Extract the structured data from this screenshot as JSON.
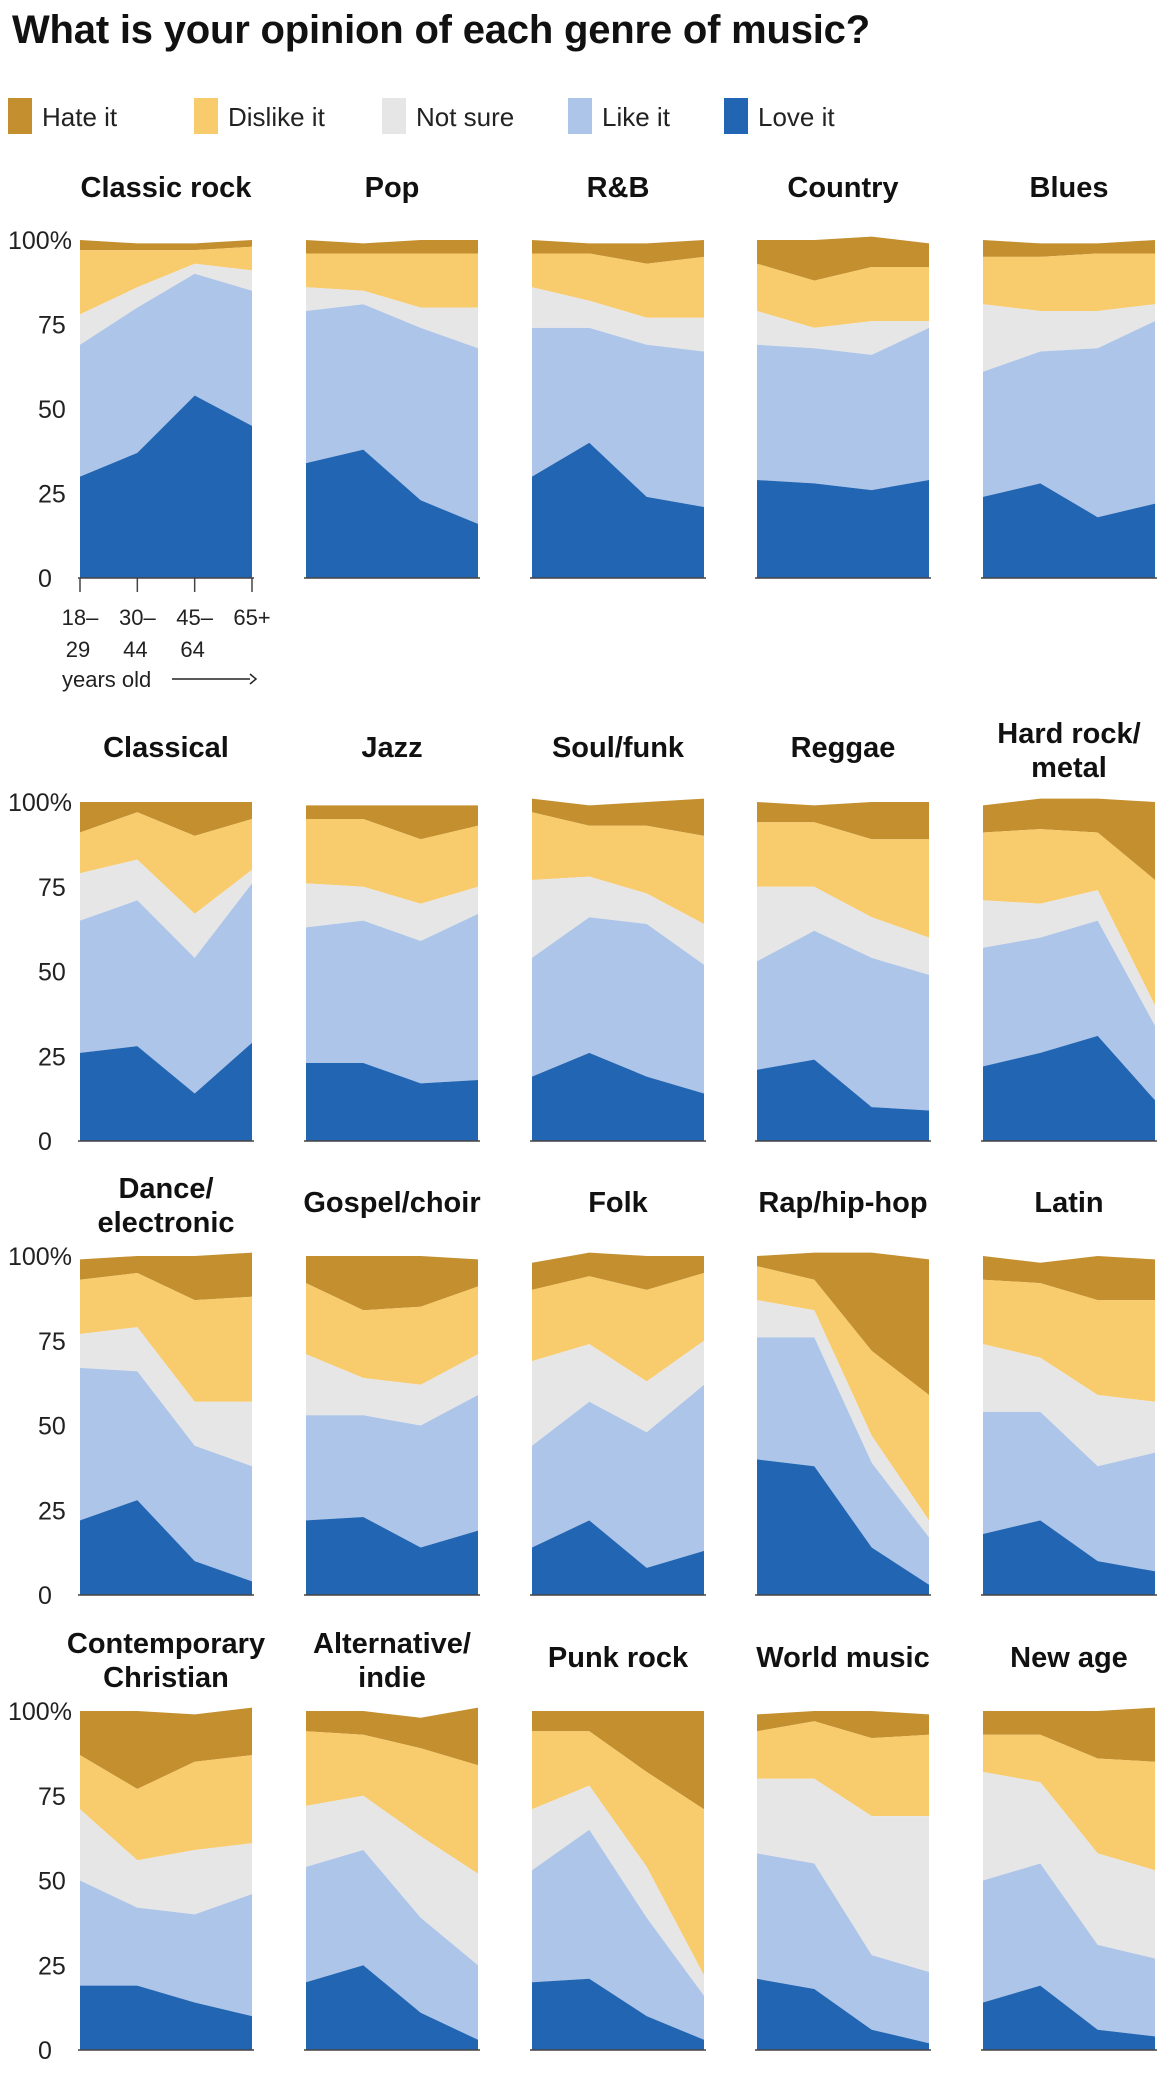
{
  "title": "What is your opinion of each genre of music?",
  "legend": [
    {
      "label": "Hate it",
      "color": "#c4902f"
    },
    {
      "label": "Dislike it",
      "color": "#f8cb6d"
    },
    {
      "label": "Not sure",
      "color": "#e6e6e6"
    },
    {
      "label": "Like it",
      "color": "#adc5e8"
    },
    {
      "label": "Love it",
      "color": "#2266b3"
    }
  ],
  "axis": {
    "yticks": [
      "100%",
      "75",
      "50",
      "25",
      "0"
    ],
    "xticks": [
      [
        "18–",
        "29"
      ],
      [
        "30–",
        "44"
      ],
      [
        "45–",
        "64"
      ],
      [
        "65+",
        ""
      ]
    ],
    "xcaption": "years old"
  },
  "chart_data": {
    "type": "area",
    "stacking": "cumulative percent, bottom to top: Love it, Like it, Not sure, Dislike it, Hate it",
    "x": [
      "18–29",
      "30–44",
      "45–64",
      "65+"
    ],
    "ylim": [
      0,
      100
    ],
    "grid": false,
    "legend_position": "top",
    "series_names": [
      "Love it",
      "Like it",
      "Not sure",
      "Dislike it",
      "Hate it"
    ],
    "panels": [
      {
        "genre": "Classic rock",
        "love": [
          30,
          37,
          54,
          45
        ],
        "like": [
          69,
          80,
          90,
          85
        ],
        "notsure": [
          78,
          86,
          93,
          91
        ],
        "dislike": [
          97,
          97,
          97,
          98
        ],
        "hate": [
          100,
          99,
          99,
          100
        ]
      },
      {
        "genre": "Pop",
        "love": [
          34,
          38,
          23,
          16
        ],
        "like": [
          79,
          81,
          74,
          68
        ],
        "notsure": [
          86,
          85,
          80,
          80
        ],
        "dislike": [
          96,
          96,
          96,
          96
        ],
        "hate": [
          100,
          99,
          100,
          100
        ]
      },
      {
        "genre": "R&B",
        "love": [
          30,
          40,
          24,
          21
        ],
        "like": [
          74,
          74,
          69,
          67
        ],
        "notsure": [
          86,
          82,
          77,
          77
        ],
        "dislike": [
          96,
          96,
          93,
          95
        ],
        "hate": [
          100,
          99,
          99,
          100
        ]
      },
      {
        "genre": "Country",
        "love": [
          29,
          28,
          26,
          29
        ],
        "like": [
          69,
          68,
          66,
          74
        ],
        "notsure": [
          79,
          74,
          76,
          76
        ],
        "dislike": [
          93,
          88,
          92,
          92
        ],
        "hate": [
          100,
          100,
          101,
          99
        ]
      },
      {
        "genre": "Blues",
        "love": [
          24,
          28,
          18,
          22
        ],
        "like": [
          61,
          67,
          68,
          76
        ],
        "notsure": [
          81,
          79,
          79,
          81
        ],
        "dislike": [
          95,
          95,
          96,
          96
        ],
        "hate": [
          100,
          99,
          99,
          100
        ]
      },
      {
        "genre": "Classical",
        "love": [
          26,
          28,
          14,
          29
        ],
        "like": [
          65,
          71,
          54,
          76
        ],
        "notsure": [
          79,
          83,
          67,
          80
        ],
        "dislike": [
          91,
          97,
          90,
          95
        ],
        "hate": [
          100,
          100,
          100,
          100
        ]
      },
      {
        "genre": "Jazz",
        "love": [
          23,
          23,
          17,
          18
        ],
        "like": [
          63,
          65,
          59,
          67
        ],
        "notsure": [
          76,
          75,
          70,
          75
        ],
        "dislike": [
          95,
          95,
          89,
          93
        ],
        "hate": [
          99,
          99,
          99,
          99
        ]
      },
      {
        "genre": "Soul/funk",
        "love": [
          19,
          26,
          19,
          14
        ],
        "like": [
          54,
          66,
          64,
          52
        ],
        "notsure": [
          77,
          78,
          73,
          64
        ],
        "dislike": [
          97,
          93,
          93,
          90
        ],
        "hate": [
          101,
          99,
          100,
          101
        ]
      },
      {
        "genre": "Reggae",
        "love": [
          21,
          24,
          10,
          9
        ],
        "like": [
          53,
          62,
          54,
          49
        ],
        "notsure": [
          75,
          75,
          66,
          60
        ],
        "dislike": [
          94,
          94,
          89,
          89
        ],
        "hate": [
          100,
          99,
          100,
          100
        ]
      },
      {
        "genre": "Hard rock/ metal",
        "love": [
          22,
          26,
          31,
          12
        ],
        "like": [
          57,
          60,
          65,
          34
        ],
        "notsure": [
          71,
          70,
          74,
          40
        ],
        "dislike": [
          91,
          92,
          91,
          77
        ],
        "hate": [
          99,
          101,
          101,
          100
        ]
      },
      {
        "genre": "Dance/ electronic",
        "love": [
          22,
          28,
          10,
          4
        ],
        "like": [
          67,
          66,
          44,
          38
        ],
        "notsure": [
          77,
          79,
          57,
          57
        ],
        "dislike": [
          93,
          95,
          87,
          88
        ],
        "hate": [
          99,
          100,
          100,
          101
        ]
      },
      {
        "genre": "Gospel/choir",
        "love": [
          22,
          23,
          14,
          19
        ],
        "like": [
          53,
          53,
          50,
          59
        ],
        "notsure": [
          71,
          64,
          62,
          71
        ],
        "dislike": [
          92,
          84,
          85,
          91
        ],
        "hate": [
          100,
          100,
          100,
          99
        ]
      },
      {
        "genre": "Folk",
        "love": [
          14,
          22,
          8,
          13
        ],
        "like": [
          44,
          57,
          48,
          62
        ],
        "notsure": [
          69,
          74,
          63,
          75
        ],
        "dislike": [
          90,
          94,
          90,
          95
        ],
        "hate": [
          98,
          101,
          100,
          100
        ]
      },
      {
        "genre": "Rap/hip-hop",
        "love": [
          40,
          38,
          14,
          3
        ],
        "like": [
          76,
          76,
          39,
          17
        ],
        "notsure": [
          87,
          84,
          47,
          22
        ],
        "dislike": [
          97,
          93,
          72,
          59
        ],
        "hate": [
          100,
          101,
          101,
          99
        ]
      },
      {
        "genre": "Latin",
        "love": [
          18,
          22,
          10,
          7
        ],
        "like": [
          54,
          54,
          38,
          42
        ],
        "notsure": [
          74,
          70,
          59,
          57
        ],
        "dislike": [
          93,
          92,
          87,
          87
        ],
        "hate": [
          100,
          98,
          100,
          99
        ]
      },
      {
        "genre": "Contemporary Christian",
        "love": [
          19,
          19,
          14,
          10
        ],
        "like": [
          50,
          42,
          40,
          46
        ],
        "notsure": [
          71,
          56,
          59,
          61
        ],
        "dislike": [
          87,
          77,
          85,
          87
        ],
        "hate": [
          100,
          100,
          99,
          101
        ]
      },
      {
        "genre": "Alternative/ indie",
        "love": [
          20,
          25,
          11,
          3
        ],
        "like": [
          54,
          59,
          39,
          25
        ],
        "notsure": [
          72,
          75,
          63,
          52
        ],
        "dislike": [
          94,
          93,
          89,
          84
        ],
        "hate": [
          100,
          100,
          98,
          101
        ]
      },
      {
        "genre": "Punk rock",
        "love": [
          20,
          21,
          10,
          3
        ],
        "like": [
          53,
          65,
          39,
          16
        ],
        "notsure": [
          71,
          78,
          54,
          22
        ],
        "dislike": [
          94,
          94,
          82,
          71
        ],
        "hate": [
          100,
          100,
          100,
          100
        ]
      },
      {
        "genre": "World music",
        "love": [
          21,
          18,
          6,
          2
        ],
        "like": [
          58,
          55,
          28,
          23
        ],
        "notsure": [
          80,
          80,
          69,
          69
        ],
        "dislike": [
          94,
          97,
          92,
          93
        ],
        "hate": [
          99,
          100,
          100,
          99
        ]
      },
      {
        "genre": "New age",
        "love": [
          14,
          19,
          6,
          4
        ],
        "like": [
          50,
          55,
          31,
          27
        ],
        "notsure": [
          82,
          79,
          58,
          53
        ],
        "dislike": [
          93,
          93,
          86,
          85
        ],
        "hate": [
          100,
          100,
          100,
          101
        ]
      }
    ]
  }
}
